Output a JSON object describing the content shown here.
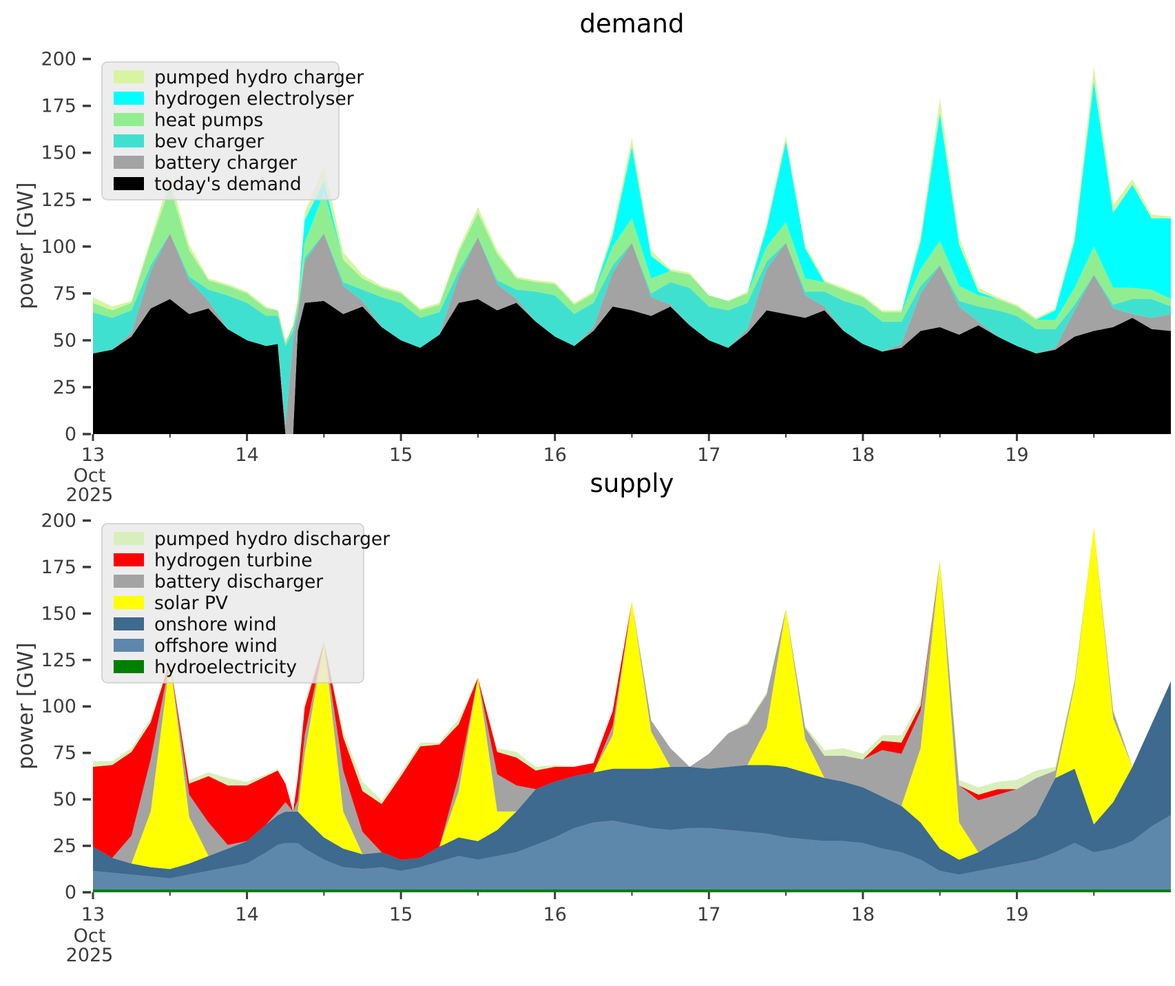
{
  "axis": {
    "month_label": "Oct",
    "year_label": "2025",
    "tick_color": "#3c3c3c",
    "legend_bg": "#e9e9e9",
    "legend_border": "#cccccc"
  },
  "chart_data": [
    {
      "type": "area",
      "stacked": true,
      "title": "demand",
      "ylabel": "power [GW]",
      "ylim": [
        0,
        200
      ],
      "yticks": [
        0,
        25,
        50,
        75,
        100,
        125,
        150,
        175,
        200
      ],
      "grid": false,
      "legend_position": "upper left",
      "legend_order": "top-of-stack-first",
      "xticks": {
        "major": [
          13,
          14,
          15,
          16,
          17,
          18,
          19
        ],
        "labels": [
          "13",
          "14",
          "15",
          "16",
          "17",
          "18",
          "19"
        ],
        "minor": [
          13.5,
          14.5,
          15.5,
          16.5,
          17.5,
          18.5,
          19.5
        ],
        "sub": [
          "Oct",
          "2025"
        ]
      },
      "x_days": [
        13,
        13.125,
        13.25,
        13.375,
        13.5,
        13.625,
        13.75,
        13.875,
        14,
        14.125,
        14.2,
        14.25,
        14.3,
        14.33,
        14.375,
        14.5,
        14.625,
        14.75,
        14.875,
        15,
        15.125,
        15.25,
        15.375,
        15.5,
        15.625,
        15.75,
        15.875,
        16,
        16.125,
        16.25,
        16.375,
        16.5,
        16.625,
        16.75,
        16.875,
        17,
        17.125,
        17.25,
        17.375,
        17.5,
        17.625,
        17.75,
        17.875,
        18,
        18.125,
        18.25,
        18.375,
        18.5,
        18.625,
        18.75,
        18.875,
        19,
        19.125,
        19.25,
        19.375,
        19.5,
        19.625,
        19.75,
        19.875,
        20
      ],
      "series": [
        {
          "name": "today's demand",
          "color": "#000000",
          "values": [
            43,
            45,
            52,
            67,
            72,
            64,
            67,
            56,
            50,
            47,
            48,
            0,
            0,
            55,
            70,
            71,
            64,
            68,
            57,
            50,
            46,
            53,
            70,
            72,
            66,
            70,
            60,
            52,
            47,
            55,
            68,
            66,
            63,
            68,
            58,
            50,
            46,
            54,
            66,
            64,
            62,
            66,
            55,
            48,
            44,
            46,
            55,
            57,
            53,
            58,
            52,
            47,
            43,
            45,
            52,
            55,
            57,
            62,
            56,
            55
          ]
        },
        {
          "name": "battery charger",
          "color": "#a3a3a3",
          "values": [
            0,
            0,
            2,
            20,
            35,
            18,
            4,
            0,
            0,
            0,
            0,
            5,
            50,
            8,
            22,
            36,
            15,
            3,
            0,
            0,
            0,
            0,
            14,
            33,
            14,
            2,
            0,
            0,
            0,
            2,
            18,
            36,
            10,
            1,
            0,
            0,
            0,
            2,
            22,
            38,
            12,
            2,
            0,
            0,
            0,
            2,
            20,
            33,
            15,
            2,
            0,
            0,
            0,
            1,
            14,
            30,
            10,
            2,
            6,
            9
          ]
        },
        {
          "name": "bev charger",
          "color": "#40e0d0",
          "values": [
            22,
            17,
            12,
            3,
            0,
            2,
            6,
            18,
            20,
            16,
            15,
            42,
            5,
            3,
            2,
            0,
            2,
            6,
            16,
            20,
            16,
            12,
            3,
            0,
            2,
            5,
            16,
            22,
            17,
            13,
            4,
            0,
            2,
            12,
            20,
            18,
            20,
            14,
            4,
            0,
            2,
            8,
            16,
            20,
            16,
            12,
            4,
            0,
            3,
            8,
            14,
            16,
            13,
            10,
            3,
            0,
            2,
            8,
            10,
            4
          ]
        },
        {
          "name": "heat pumps",
          "color": "#90ee90",
          "values": [
            5,
            4,
            4,
            12,
            25,
            14,
            5,
            5,
            5,
            4,
            3,
            2,
            3,
            4,
            8,
            22,
            12,
            6,
            5,
            5,
            4,
            4,
            10,
            13,
            14,
            6,
            5,
            6,
            5,
            5,
            10,
            13,
            8,
            6,
            7,
            6,
            5,
            5,
            8,
            11,
            7,
            5,
            6,
            5,
            5,
            5,
            9,
            13,
            8,
            6,
            6,
            5,
            5,
            5,
            9,
            15,
            9,
            6,
            5,
            4
          ]
        },
        {
          "name": "hydrogen electrolyser",
          "color": "#00ffff",
          "values": [
            0,
            0,
            0,
            0,
            0,
            0,
            0,
            0,
            0,
            0,
            0,
            0,
            0,
            0,
            12,
            6,
            0,
            0,
            0,
            0,
            0,
            0,
            0,
            0,
            0,
            0,
            0,
            0,
            0,
            0,
            6,
            38,
            12,
            0,
            0,
            0,
            0,
            0,
            10,
            43,
            16,
            0,
            0,
            0,
            0,
            0,
            15,
            68,
            22,
            2,
            0,
            0,
            0,
            5,
            25,
            88,
            40,
            55,
            38,
            43
          ]
        },
        {
          "name": "pumped hydro charger",
          "color": "#d8f4a2",
          "values": [
            3,
            2,
            1,
            2,
            5,
            3,
            1,
            1,
            1,
            1,
            0,
            0,
            0,
            2,
            4,
            8,
            4,
            2,
            1,
            1,
            1,
            1,
            2,
            3,
            2,
            1,
            1,
            1,
            1,
            1,
            3,
            5,
            3,
            1,
            1,
            0,
            0,
            1,
            2,
            3,
            2,
            1,
            1,
            1,
            1,
            1,
            3,
            8,
            4,
            2,
            1,
            1,
            1,
            1,
            3,
            8,
            4,
            3,
            2,
            1
          ]
        }
      ]
    },
    {
      "type": "area",
      "stacked": true,
      "title": "supply",
      "ylabel": "power [GW]",
      "ylim": [
        0,
        200
      ],
      "yticks": [
        0,
        25,
        50,
        75,
        100,
        125,
        150,
        175,
        200
      ],
      "grid": false,
      "legend_position": "upper left",
      "legend_order": "top-of-stack-first",
      "xticks": {
        "major": [
          13,
          14,
          15,
          16,
          17,
          18,
          19
        ],
        "labels": [
          "13",
          "14",
          "15",
          "16",
          "17",
          "18",
          "19"
        ],
        "minor": [
          13.5,
          14.5,
          15.5,
          16.5,
          17.5,
          18.5,
          19.5
        ],
        "sub": [
          "Oct",
          "2025"
        ]
      },
      "x_days": [
        13,
        13.125,
        13.25,
        13.375,
        13.5,
        13.625,
        13.75,
        13.875,
        14,
        14.125,
        14.2,
        14.25,
        14.3,
        14.33,
        14.375,
        14.5,
        14.625,
        14.75,
        14.875,
        15,
        15.125,
        15.25,
        15.375,
        15.5,
        15.625,
        15.75,
        15.875,
        16,
        16.125,
        16.25,
        16.375,
        16.5,
        16.625,
        16.75,
        16.875,
        17,
        17.125,
        17.25,
        17.375,
        17.5,
        17.625,
        17.75,
        17.875,
        18,
        18.125,
        18.25,
        18.375,
        18.5,
        18.625,
        18.75,
        18.875,
        19,
        19.125,
        19.25,
        19.375,
        19.5,
        19.625,
        19.75,
        19.875,
        20
      ],
      "series": [
        {
          "name": "hydroelectricity",
          "color": "#008000",
          "values": [
            1.5,
            1.5,
            1.5,
            1.5,
            1.5,
            1.5,
            1.5,
            1.5,
            1.5,
            1.5,
            1.5,
            1.5,
            1.5,
            1.5,
            1.5,
            1.5,
            1.5,
            1.5,
            1.5,
            1.5,
            1.5,
            1.5,
            1.5,
            1.5,
            1.5,
            1.5,
            1.5,
            1.5,
            1.5,
            1.5,
            1.5,
            1.5,
            1.5,
            1.5,
            1.5,
            1.5,
            1.5,
            1.5,
            1.5,
            1.5,
            1.5,
            1.5,
            1.5,
            1.5,
            1.5,
            1.5,
            1.5,
            1.5,
            1.5,
            1.5,
            1.5,
            1.5,
            1.5,
            1.5,
            1.5,
            1.5,
            1.5,
            1.5,
            1.5,
            1.5
          ]
        },
        {
          "name": "offshore wind",
          "color": "#5e87ac",
          "values": [
            10,
            9,
            8,
            7,
            6,
            8,
            10,
            12,
            14,
            20,
            24,
            25,
            25,
            25,
            22,
            16,
            12,
            11,
            12,
            10,
            12,
            15,
            18,
            16,
            18,
            20,
            24,
            28,
            33,
            36,
            37,
            35,
            33,
            32,
            33,
            33,
            32,
            31,
            30,
            28,
            27,
            26,
            26,
            25,
            22,
            20,
            16,
            10,
            8,
            10,
            12,
            14,
            16,
            20,
            25,
            20,
            22,
            26,
            34,
            40
          ]
        },
        {
          "name": "onshore wind",
          "color": "#3d6a8e",
          "values": [
            13,
            8,
            6,
            5,
            5,
            6,
            8,
            10,
            12,
            15,
            16,
            17,
            17,
            17,
            16,
            12,
            10,
            8,
            8,
            6,
            5,
            8,
            10,
            10,
            14,
            22,
            30,
            30,
            28,
            27,
            28,
            30,
            32,
            34,
            33,
            32,
            34,
            36,
            37,
            38,
            36,
            34,
            32,
            30,
            28,
            25,
            20,
            12,
            8,
            10,
            14,
            18,
            24,
            40,
            40,
            15,
            25,
            40,
            55,
            72
          ]
        },
        {
          "name": "solar PV",
          "color": "#ffff00",
          "values": [
            0,
            0,
            0,
            30,
            112,
            25,
            0,
            0,
            0,
            0,
            0,
            0,
            0,
            0,
            35,
            105,
            20,
            0,
            0,
            0,
            0,
            0,
            25,
            88,
            10,
            0,
            0,
            0,
            0,
            0,
            18,
            90,
            20,
            0,
            0,
            0,
            0,
            0,
            20,
            85,
            18,
            0,
            0,
            0,
            0,
            0,
            40,
            155,
            20,
            0,
            0,
            0,
            0,
            0,
            45,
            160,
            45,
            0,
            0,
            0
          ]
        },
        {
          "name": "battery discharger",
          "color": "#a3a3a3",
          "values": [
            0,
            0,
            15,
            28,
            0,
            12,
            18,
            2,
            0,
            0,
            2,
            5,
            0,
            6,
            10,
            0,
            22,
            12,
            0,
            0,
            0,
            0,
            8,
            0,
            20,
            14,
            0,
            0,
            0,
            0,
            5,
            0,
            6,
            10,
            0,
            8,
            18,
            22,
            18,
            0,
            6,
            12,
            14,
            15,
            25,
            28,
            20,
            0,
            20,
            28,
            25,
            22,
            20,
            4,
            2,
            0,
            4,
            0,
            0,
            0
          ]
        },
        {
          "name": "hydrogen turbine",
          "color": "#ff0000",
          "values": [
            43,
            50,
            45,
            20,
            0,
            6,
            25,
            32,
            30,
            26,
            22,
            10,
            0,
            12,
            15,
            0,
            18,
            22,
            26,
            45,
            60,
            55,
            28,
            0,
            12,
            15,
            10,
            8,
            5,
            5,
            8,
            0,
            0,
            0,
            0,
            0,
            0,
            0,
            0,
            0,
            0,
            0,
            0,
            0,
            5,
            6,
            3,
            0,
            0,
            3,
            3,
            0,
            0,
            0,
            0,
            0,
            0,
            0,
            0,
            0
          ]
        },
        {
          "name": "pumped hydro discharger",
          "color": "#d8efbb",
          "values": [
            3,
            2,
            2,
            2,
            0,
            2,
            2,
            4,
            2,
            1,
            1,
            0,
            0,
            0,
            2,
            2,
            3,
            5,
            2,
            2,
            2,
            1,
            3,
            0,
            2,
            3,
            2,
            1,
            0,
            0,
            0,
            0,
            0,
            0,
            0,
            0,
            0,
            1,
            1,
            0,
            1,
            3,
            4,
            3,
            3,
            4,
            3,
            0,
            3,
            4,
            4,
            5,
            4,
            2,
            1,
            0,
            1,
            0,
            0,
            0
          ]
        }
      ]
    }
  ]
}
